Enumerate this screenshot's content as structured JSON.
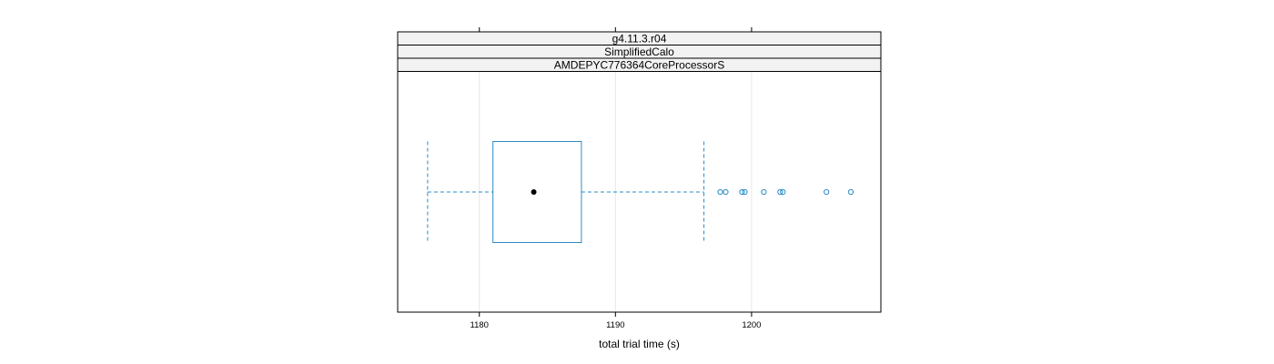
{
  "chart_data": {
    "type": "boxplot",
    "orientation": "horizontal",
    "strips": [
      "g4.11.3.r04",
      "SimplifiedCalo",
      "AMDEPYC776364CoreProcessorS"
    ],
    "xlabel": "total trial time (s)",
    "xlim": [
      1174.0,
      1209.5
    ],
    "x_ticks": [
      1180,
      1190,
      1200
    ],
    "x_tick_labels": [
      "1180",
      "1190",
      "1200"
    ],
    "grid": true,
    "box": {
      "whisker_low": 1176.2,
      "q1": 1181.0,
      "median": 1184.0,
      "q3": 1187.5,
      "whisker_high": 1196.5
    },
    "outliers": [
      1197.7,
      1198.1,
      1199.3,
      1199.5,
      1200.9,
      1202.1,
      1202.3,
      1205.5,
      1207.3
    ],
    "colors": {
      "box": "#2a8cc4",
      "median_dot": "#000000",
      "strip_bg": "#f2f2f2",
      "grid": "#e6e6e6",
      "frame": "#000000"
    }
  }
}
